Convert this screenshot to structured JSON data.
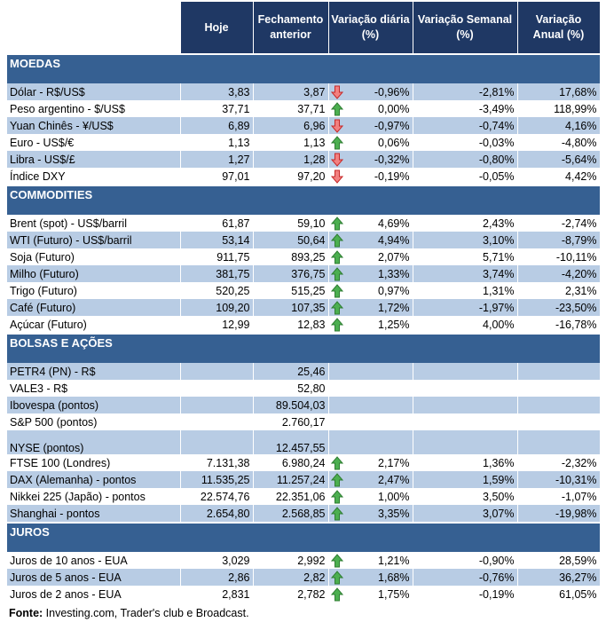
{
  "colors": {
    "header": "#1f3864",
    "section": "#366092",
    "alt_row": "#b8cce4",
    "up": "#3c9a3c",
    "down": "#e04848"
  },
  "headers": [
    "Hoje",
    "Fechamento anterior",
    "Variação diária (%)",
    "Variação Semanal (%)",
    "Variação Anual (%)"
  ],
  "sections": [
    {
      "title": "MOEDAS",
      "rows": [
        {
          "label": "Dólar - R$/US$",
          "hoje": "3,83",
          "fech": "3,87",
          "arrow": "down",
          "dia": "-0,96%",
          "sem": "-2,81%",
          "ano": "17,68%"
        },
        {
          "label": "Peso argentino - $/US$",
          "hoje": "37,71",
          "fech": "37,71",
          "arrow": "up",
          "dia": "0,00%",
          "sem": "-3,49%",
          "ano": "118,99%"
        },
        {
          "label": "Yuan Chinês - ¥/US$",
          "hoje": "6,89",
          "fech": "6,96",
          "arrow": "down",
          "dia": "-0,97%",
          "sem": "-0,74%",
          "ano": "4,16%"
        },
        {
          "label": "Euro - US$/€",
          "hoje": "1,13",
          "fech": "1,13",
          "arrow": "up",
          "dia": "0,06%",
          "sem": "-0,03%",
          "ano": "-4,80%"
        },
        {
          "label": "Libra - US$/£",
          "hoje": "1,27",
          "fech": "1,28",
          "arrow": "down",
          "dia": "-0,32%",
          "sem": "-0,80%",
          "ano": "-5,64%"
        },
        {
          "label": "Índice DXY",
          "hoje": "97,01",
          "fech": "97,20",
          "arrow": "down",
          "dia": "-0,19%",
          "sem": "-0,05%",
          "ano": "4,42%"
        }
      ]
    },
    {
      "title": "COMMODITIES",
      "rows": [
        {
          "label": "Brent (spot) - US$/barril",
          "hoje": "61,87",
          "fech": "59,10",
          "arrow": "up",
          "dia": "4,69%",
          "sem": "2,43%",
          "ano": "-2,74%"
        },
        {
          "label": "WTI (Futuro) - US$/barril",
          "hoje": "53,14",
          "fech": "50,64",
          "arrow": "up",
          "dia": "4,94%",
          "sem": "3,10%",
          "ano": "-8,79%"
        },
        {
          "label": "Soja (Futuro)",
          "hoje": "911,75",
          "fech": "893,25",
          "arrow": "up",
          "dia": "2,07%",
          "sem": "5,71%",
          "ano": "-10,11%"
        },
        {
          "label": "Milho (Futuro)",
          "hoje": "381,75",
          "fech": "376,75",
          "arrow": "up",
          "dia": "1,33%",
          "sem": "3,74%",
          "ano": "-4,20%"
        },
        {
          "label": "Trigo (Futuro)",
          "hoje": "520,25",
          "fech": "515,25",
          "arrow": "up",
          "dia": "0,97%",
          "sem": "1,31%",
          "ano": "2,31%"
        },
        {
          "label": "Café (Futuro)",
          "hoje": "109,20",
          "fech": "107,35",
          "arrow": "up",
          "dia": "1,72%",
          "sem": "-1,97%",
          "ano": "-23,50%"
        },
        {
          "label": "Açúcar (Futuro)",
          "hoje": "12,99",
          "fech": "12,83",
          "arrow": "up",
          "dia": "1,25%",
          "sem": "4,00%",
          "ano": "-16,78%"
        }
      ]
    },
    {
      "title": "BOLSAS E AÇÕES",
      "rows": [
        {
          "label": "PETR4 (PN) - R$",
          "hoje": "",
          "fech": "25,46",
          "arrow": "",
          "dia": "",
          "sem": "",
          "ano": ""
        },
        {
          "label": "VALE3 - R$",
          "hoje": "",
          "fech": "52,80",
          "arrow": "",
          "dia": "",
          "sem": "",
          "ano": ""
        },
        {
          "label": "Ibovespa (pontos)",
          "hoje": "",
          "fech": "89.504,03",
          "arrow": "",
          "dia": "",
          "sem": "",
          "ano": ""
        },
        {
          "label": "S&P 500 (pontos)",
          "hoje": "",
          "fech": "2.760,17",
          "arrow": "",
          "dia": "",
          "sem": "",
          "ano": ""
        },
        {
          "label": "NYSE (pontos)",
          "hoje": "",
          "fech": "12.457,55",
          "arrow": "",
          "dia": "",
          "sem": "",
          "ano": ""
        },
        {
          "label": "FTSE 100 (Londres)",
          "hoje": "7.131,38",
          "fech": "6.980,24",
          "arrow": "up",
          "dia": "2,17%",
          "sem": "1,36%",
          "ano": "-2,32%"
        },
        {
          "label": "DAX (Alemanha) - pontos",
          "hoje": "11.535,25",
          "fech": "11.257,24",
          "arrow": "up",
          "dia": "2,47%",
          "sem": "1,59%",
          "ano": "-10,31%"
        },
        {
          "label": "Nikkei 225 (Japão) - pontos",
          "hoje": "22.574,76",
          "fech": "22.351,06",
          "arrow": "up",
          "dia": "1,00%",
          "sem": "3,50%",
          "ano": "-1,07%"
        },
        {
          "label": "Shanghai - pontos",
          "hoje": "2.654,80",
          "fech": "2.568,85",
          "arrow": "up",
          "dia": "3,35%",
          "sem": "3,07%",
          "ano": "-19,98%"
        }
      ]
    },
    {
      "title": "JUROS",
      "rows": [
        {
          "label": "Juros de 10 anos - EUA",
          "hoje": "3,029",
          "fech": "2,992",
          "arrow": "up",
          "dia": "1,21%",
          "sem": "-0,90%",
          "ano": "28,59%"
        },
        {
          "label": "Juros de 5 anos - EUA",
          "hoje": "2,86",
          "fech": "2,82",
          "arrow": "up",
          "dia": "1,68%",
          "sem": "-0,76%",
          "ano": "36,27%"
        },
        {
          "label": "Juros de 2 anos - EUA",
          "hoje": "2,831",
          "fech": "2,782",
          "arrow": "up",
          "dia": "1,75%",
          "sem": "-0,19%",
          "ano": "61,05%"
        }
      ]
    }
  ],
  "footer": {
    "label": "Fonte:",
    "text": " Investing.com, Trader's club e Broadcast."
  }
}
